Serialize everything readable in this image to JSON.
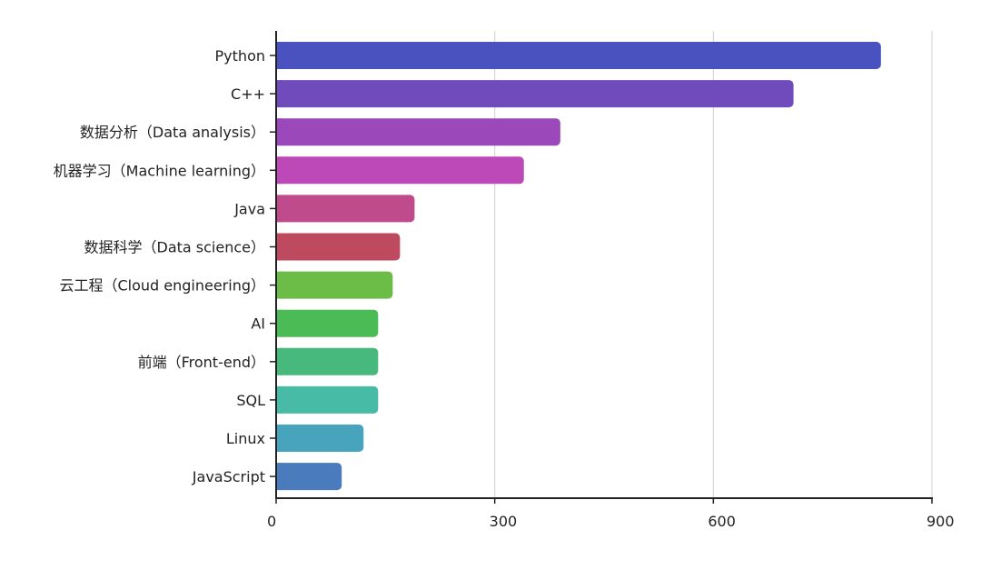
{
  "chart_data": {
    "type": "bar",
    "orientation": "horizontal",
    "categories": [
      "Python",
      "C++",
      "数据分析（Data analysis）",
      "机器学习（Machine learning）",
      "Java",
      "数据科学（Data science）",
      "云工程（Cloud engineering）",
      "AI",
      "前端（Front-end）",
      "SQL",
      "Linux",
      "JavaScript"
    ],
    "values": [
      830,
      710,
      390,
      340,
      190,
      170,
      160,
      140,
      140,
      140,
      120,
      90
    ],
    "colors": [
      "#4a52c0",
      "#6f4bbb",
      "#9b48ba",
      "#bd49b8",
      "#bf4a8c",
      "#bd4a5e",
      "#6bbd48",
      "#4abb55",
      "#47b97c",
      "#48bba6",
      "#48a4bd",
      "#4a7bbd"
    ],
    "xlim": [
      0,
      900
    ],
    "xticks": [
      "0",
      "300",
      "600",
      "900"
    ],
    "title": "",
    "xlabel": "",
    "ylabel": "",
    "grid": "vertical",
    "axis_color": "#222222",
    "grid_color": "#d0d0d0"
  }
}
